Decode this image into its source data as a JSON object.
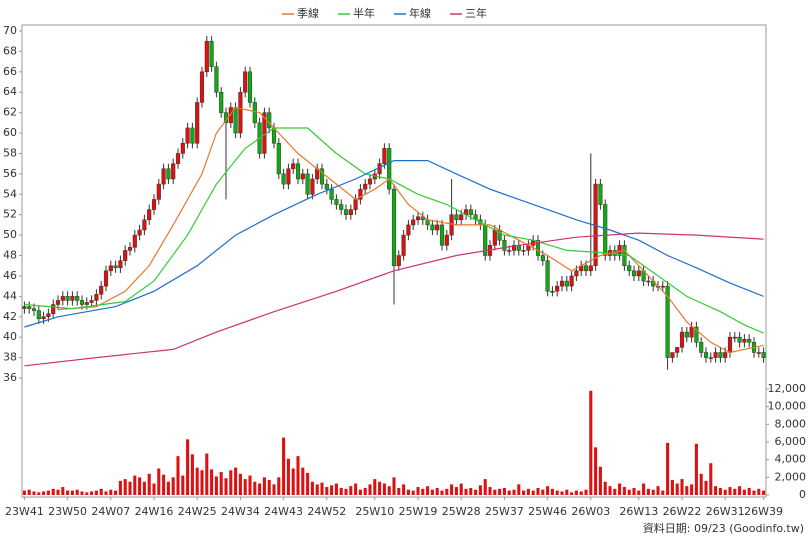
{
  "chart_data": {
    "type": "candlestick",
    "categories": [
      "23W41",
      null,
      null,
      null,
      null,
      null,
      null,
      null,
      null,
      "23W50",
      null,
      null,
      null,
      null,
      null,
      null,
      null,
      null,
      "24W07",
      null,
      null,
      null,
      null,
      null,
      null,
      null,
      null,
      "24W16",
      null,
      null,
      null,
      null,
      null,
      null,
      null,
      null,
      "24W25",
      null,
      null,
      null,
      null,
      null,
      null,
      null,
      null,
      "24W34",
      null,
      null,
      null,
      null,
      null,
      null,
      null,
      null,
      "24W43",
      null,
      null,
      null,
      null,
      null,
      null,
      null,
      null,
      "24W52",
      null,
      null,
      null,
      null,
      null,
      null,
      null,
      null,
      null,
      "25W10",
      null,
      null,
      null,
      null,
      null,
      null,
      null,
      null,
      "25W19",
      null,
      null,
      null,
      null,
      null,
      null,
      null,
      null,
      "25W28",
      null,
      null,
      null,
      null,
      null,
      null,
      null,
      null,
      "25W37",
      null,
      null,
      null,
      null,
      null,
      null,
      null,
      null,
      "25W46",
      null,
      null,
      null,
      null,
      null,
      null,
      null,
      null,
      "26W03",
      null,
      null,
      null,
      null,
      null,
      null,
      null,
      null,
      null,
      "26W13",
      null,
      null,
      null,
      null,
      null,
      null,
      null,
      null,
      "26W22",
      null,
      null,
      null,
      null,
      null,
      null,
      null,
      null,
      "26W31",
      null,
      null,
      null,
      null,
      null,
      null,
      null,
      "26W39"
    ],
    "open": [
      42.8,
      43.0,
      42.8,
      42.6,
      41.8,
      42.0,
      42.3,
      43.2,
      43.6,
      44.0,
      43.6,
      44.0,
      43.6,
      43.2,
      43.4,
      43.6,
      44.2,
      45.0,
      46.5,
      47.0,
      46.8,
      47.5,
      48.5,
      48.8,
      50.0,
      50.5,
      51.5,
      52.5,
      53.5,
      55.0,
      56.5,
      55.5,
      57.0,
      58.0,
      59.0,
      60.5,
      59.0,
      63.0,
      66.0,
      69.0,
      66.5,
      64.0,
      62.0,
      61.0,
      62.5,
      60.0,
      64.0,
      66.0,
      63.0,
      61.0,
      58.0,
      62.0,
      60.5,
      59.0,
      56.0,
      55.0,
      56.5,
      57.0,
      55.5,
      56.0,
      54.0,
      55.5,
      56.5,
      55.0,
      54.5,
      53.5,
      53.0,
      52.5,
      52.0,
      52.5,
      53.5,
      54.5,
      55.0,
      55.5,
      56.0,
      57.0,
      58.5,
      54.5,
      47.0,
      48.0,
      50.0,
      51.0,
      51.5,
      51.8,
      51.5,
      51.0,
      50.5,
      51.0,
      49.0,
      50.0,
      52.0,
      51.5,
      52.0,
      52.5,
      52.0,
      51.5,
      51.0,
      48.0,
      49.0,
      50.5,
      49.5,
      48.5,
      48.5,
      49.0,
      48.5,
      48.5,
      49.0,
      49.5,
      48.0,
      47.5,
      44.5,
      44.5,
      45.0,
      45.5,
      45.0,
      46.0,
      46.5,
      47.0,
      46.5,
      47.0,
      55.0,
      53.0,
      48.0,
      48.5,
      48.0,
      49.0,
      47.0,
      46.5,
      46.0,
      46.5,
      45.5,
      45.5,
      45.0,
      45.0,
      45.0,
      38.0,
      38.5,
      39.0,
      40.5,
      40.0,
      41.0,
      39.5,
      38.5,
      38.0,
      38.0,
      38.5,
      38.0,
      38.5,
      40.0,
      40.0,
      39.5,
      39.8,
      39.5,
      38.5,
      38.5
    ],
    "high": [
      43.5,
      43.5,
      43.3,
      43.1,
      42.5,
      42.8,
      43.7,
      44.1,
      44.5,
      44.5,
      44.5,
      44.5,
      44.1,
      43.9,
      44.1,
      44.7,
      45.5,
      47.0,
      47.5,
      47.5,
      48.0,
      49.0,
      49.3,
      50.5,
      51.0,
      52.0,
      53.0,
      54.0,
      55.5,
      57.0,
      57.0,
      57.5,
      58.5,
      59.5,
      61.0,
      61.0,
      63.5,
      66.5,
      69.5,
      69.5,
      67.0,
      64.5,
      62.5,
      63.0,
      63.0,
      64.5,
      66.5,
      66.5,
      63.5,
      61.5,
      62.5,
      62.5,
      61.0,
      59.5,
      56.5,
      57.0,
      57.5,
      57.5,
      56.5,
      56.5,
      56.0,
      57.0,
      57.0,
      55.5,
      55.0,
      54.0,
      53.5,
      53.0,
      53.0,
      54.0,
      55.0,
      55.5,
      56.0,
      56.5,
      57.5,
      59.0,
      59.0,
      55.0,
      48.5,
      50.5,
      51.5,
      52.0,
      52.3,
      52.3,
      52.0,
      51.5,
      51.5,
      51.5,
      50.5,
      55.5,
      52.5,
      52.5,
      53.0,
      53.0,
      52.5,
      52.0,
      51.5,
      49.5,
      51.0,
      51.0,
      50.0,
      49.0,
      49.5,
      49.5,
      49.0,
      49.5,
      50.0,
      50.0,
      48.5,
      48.0,
      45.0,
      45.5,
      46.0,
      46.0,
      46.5,
      47.0,
      47.5,
      47.5,
      58.0,
      55.5,
      55.5,
      53.5,
      49.0,
      49.0,
      49.5,
      49.5,
      47.5,
      47.0,
      47.0,
      47.0,
      46.0,
      46.0,
      45.5,
      45.5,
      45.5,
      38.5,
      39.0,
      41.0,
      41.0,
      41.5,
      41.5,
      40.0,
      39.0,
      38.5,
      39.0,
      39.0,
      39.0,
      40.5,
      40.5,
      40.5,
      40.3,
      40.3,
      40.0,
      39.0,
      39.0
    ],
    "low": [
      42.3,
      42.3,
      42.1,
      41.3,
      41.3,
      41.5,
      41.8,
      42.7,
      43.1,
      43.1,
      43.1,
      43.1,
      42.7,
      42.7,
      42.9,
      43.1,
      43.7,
      44.5,
      46.0,
      46.3,
      46.3,
      47.0,
      48.0,
      48.3,
      49.5,
      50.0,
      51.0,
      52.0,
      53.0,
      54.5,
      55.0,
      55.0,
      56.5,
      57.5,
      58.5,
      58.5,
      58.5,
      62.5,
      65.5,
      66.0,
      63.5,
      61.5,
      53.5,
      60.5,
      59.5,
      59.5,
      63.5,
      62.5,
      60.5,
      57.5,
      57.5,
      60.0,
      58.5,
      55.5,
      54.5,
      54.5,
      56.0,
      55.0,
      55.0,
      53.5,
      53.5,
      55.0,
      54.5,
      54.0,
      53.0,
      52.5,
      52.0,
      51.5,
      51.5,
      52.0,
      53.0,
      54.0,
      54.5,
      55.0,
      55.5,
      56.5,
      54.0,
      43.2,
      46.5,
      47.5,
      49.5,
      50.5,
      51.0,
      51.0,
      50.5,
      50.0,
      50.0,
      48.5,
      48.5,
      49.5,
      51.0,
      51.0,
      51.5,
      51.5,
      51.0,
      50.5,
      47.5,
      47.5,
      48.5,
      49.0,
      48.0,
      48.0,
      48.0,
      48.0,
      48.0,
      48.0,
      48.5,
      47.5,
      47.0,
      44.0,
      44.0,
      44.0,
      44.5,
      44.5,
      44.5,
      45.5,
      46.0,
      46.0,
      46.0,
      46.5,
      52.5,
      47.5,
      47.5,
      47.5,
      47.5,
      46.5,
      46.0,
      45.5,
      45.5,
      45.0,
      45.0,
      44.5,
      44.5,
      44.5,
      36.8,
      37.5,
      38.0,
      38.5,
      39.5,
      39.5,
      39.0,
      38.0,
      37.5,
      37.5,
      37.5,
      37.5,
      37.5,
      38.0,
      39.5,
      39.0,
      39.0,
      39.0,
      38.0,
      38.0,
      37.5
    ],
    "close": [
      43.0,
      42.8,
      42.6,
      41.8,
      42.0,
      42.3,
      43.2,
      43.6,
      44.0,
      43.6,
      44.0,
      43.6,
      43.2,
      43.4,
      43.6,
      44.2,
      45.0,
      46.5,
      47.0,
      46.8,
      47.5,
      48.5,
      48.8,
      50.0,
      50.5,
      51.5,
      52.5,
      53.5,
      55.0,
      56.5,
      55.5,
      57.0,
      58.0,
      59.0,
      60.5,
      59.0,
      63.0,
      66.0,
      69.0,
      66.5,
      64.0,
      62.0,
      61.0,
      62.5,
      60.0,
      64.0,
      66.0,
      63.0,
      61.0,
      58.0,
      62.0,
      60.5,
      59.0,
      56.0,
      55.0,
      56.5,
      57.0,
      55.5,
      56.0,
      54.0,
      55.5,
      56.5,
      55.0,
      54.5,
      53.5,
      53.0,
      52.5,
      52.0,
      52.5,
      53.5,
      54.5,
      55.0,
      55.5,
      56.0,
      57.0,
      58.5,
      54.5,
      47.0,
      48.0,
      50.0,
      51.0,
      51.5,
      51.8,
      51.5,
      51.0,
      50.5,
      51.0,
      49.0,
      50.0,
      52.0,
      51.5,
      52.0,
      52.5,
      52.0,
      51.5,
      51.0,
      48.0,
      49.0,
      50.5,
      49.5,
      48.5,
      48.5,
      49.0,
      48.5,
      48.5,
      49.0,
      49.5,
      48.0,
      47.5,
      44.5,
      44.5,
      45.0,
      45.5,
      45.0,
      46.0,
      46.5,
      47.0,
      46.5,
      47.0,
      55.0,
      53.0,
      48.0,
      48.5,
      48.0,
      49.0,
      47.0,
      46.5,
      46.0,
      46.5,
      45.5,
      45.5,
      45.0,
      45.0,
      45.0,
      38.0,
      38.5,
      39.0,
      40.5,
      40.0,
      41.0,
      39.5,
      38.5,
      38.0,
      38.0,
      38.5,
      38.0,
      38.5,
      40.0,
      40.0,
      39.5,
      39.8,
      39.5,
      38.5,
      38.5,
      38.0
    ],
    "volume": [
      500,
      600,
      400,
      300,
      400,
      500,
      700,
      600,
      900,
      500,
      500,
      600,
      400,
      300,
      400,
      500,
      700,
      400,
      600,
      500,
      1600,
      1800,
      1500,
      2200,
      2000,
      1500,
      2400,
      1300,
      3000,
      2300,
      1500,
      2000,
      4400,
      2200,
      6300,
      4600,
      3100,
      2800,
      4700,
      2900,
      2100,
      2600,
      1900,
      2800,
      3100,
      2400,
      1800,
      2200,
      1500,
      1300,
      2000,
      1700,
      1200,
      2000,
      6500,
      4100,
      3000,
      4400,
      3100,
      2500,
      1500,
      1200,
      1400,
      900,
      1100,
      1300,
      800,
      700,
      1000,
      1300,
      600,
      800,
      1200,
      1800,
      1500,
      1300,
      1000,
      2000,
      800,
      1200,
      600,
      500,
      900,
      700,
      1000,
      600,
      800,
      500,
      700,
      1200,
      900,
      1300,
      700,
      800,
      600,
      1100,
      1800,
      900,
      600,
      700,
      800,
      500,
      600,
      1200,
      500,
      700,
      500,
      800,
      600,
      1000,
      700,
      500,
      400,
      600,
      300,
      500,
      400,
      600,
      11800,
      5400,
      3200,
      1500,
      1000,
      700,
      1300,
      900,
      600,
      800,
      500,
      1300,
      700,
      600,
      1000,
      500,
      5900,
      1700,
      1300,
      1800,
      1000,
      1200,
      5800,
      2400,
      1600,
      3600,
      1000,
      800,
      600,
      900,
      700,
      1000,
      600,
      800,
      500,
      700,
      500
    ],
    "up_color": "#dd1111",
    "down_color": "#11aa11",
    "volume_color": "#dd1111",
    "ylim": [
      36,
      70
    ],
    "yticks": [
      36,
      38,
      40,
      42,
      44,
      46,
      48,
      50,
      52,
      54,
      56,
      58,
      60,
      62,
      64,
      66,
      68,
      70
    ],
    "volume_ylim": [
      0,
      12000
    ],
    "volume_ticks": [
      0,
      {
        "value": 2000,
        "label": "2,000"
      },
      {
        "value": 4000,
        "label": "4,000"
      },
      {
        "value": 6000,
        "label": "6,000"
      },
      {
        "value": 8000,
        "label": "8,000"
      },
      {
        "value": 10000,
        "label": "10,000"
      },
      {
        "value": 12000,
        "label": "12,000"
      }
    ],
    "series": [
      {
        "name": "季線",
        "color": "#e8772e",
        "x": [
          7,
          15,
          21,
          26,
          31,
          37,
          40,
          44,
          49,
          53,
          57,
          61,
          65,
          69,
          73,
          76,
          80,
          84,
          90,
          97,
          103,
          109,
          114,
          120,
          125,
          130,
          134,
          138,
          143,
          147,
          154
        ],
        "values": [
          42.7,
          43.0,
          44.5,
          47.0,
          51.0,
          56.0,
          60.0,
          62.5,
          62.0,
          60.0,
          58.0,
          56.5,
          55.0,
          53.5,
          54.5,
          55.5,
          53.0,
          51.5,
          51.0,
          51.0,
          49.5,
          48.0,
          46.5,
          48.0,
          48.5,
          46.0,
          44.0,
          41.5,
          39.5,
          38.5,
          39.2
        ]
      },
      {
        "name": "半年",
        "color": "#33cc33",
        "x": [
          0,
          10,
          21,
          27,
          34,
          40,
          46,
          52,
          59,
          65,
          71,
          76,
          82,
          88,
          94,
          100,
          106,
          113,
          120,
          126,
          132,
          138,
          145,
          150,
          154
        ],
        "values": [
          43.2,
          42.8,
          43.5,
          45.5,
          50.0,
          55.0,
          58.5,
          60.5,
          60.5,
          58.0,
          56.0,
          55.5,
          54.0,
          53.0,
          51.5,
          50.0,
          49.5,
          48.5,
          48.3,
          48.0,
          46.0,
          44.0,
          42.5,
          41.2,
          40.4
        ]
      },
      {
        "name": "年線",
        "color": "#1f6fd0",
        "x": [
          0,
          7,
          19,
          27,
          36,
          44,
          52,
          61,
          69,
          77,
          84,
          90,
          97,
          103,
          109,
          115,
          122,
          128,
          134,
          140,
          147,
          154
        ],
        "values": [
          41.0,
          42.0,
          43.0,
          44.5,
          47.0,
          50.0,
          52.0,
          54.0,
          55.5,
          57.3,
          57.3,
          56.0,
          54.5,
          53.5,
          52.5,
          51.5,
          50.5,
          49.5,
          48.0,
          46.8,
          45.3,
          44.0
        ]
      },
      {
        "name": "三年",
        "color": "#cc3377",
        "x": [
          0,
          15,
          31,
          40,
          52,
          65,
          77,
          90,
          103,
          115,
          128,
          140,
          154
        ],
        "values": [
          37.2,
          38.0,
          38.8,
          40.5,
          42.5,
          44.5,
          46.5,
          48.0,
          49.0,
          49.8,
          50.2,
          50.0,
          49.6
        ]
      }
    ],
    "legend_position": "top",
    "footer": "資料日期: 09/23 (Goodinfo.tw)"
  }
}
